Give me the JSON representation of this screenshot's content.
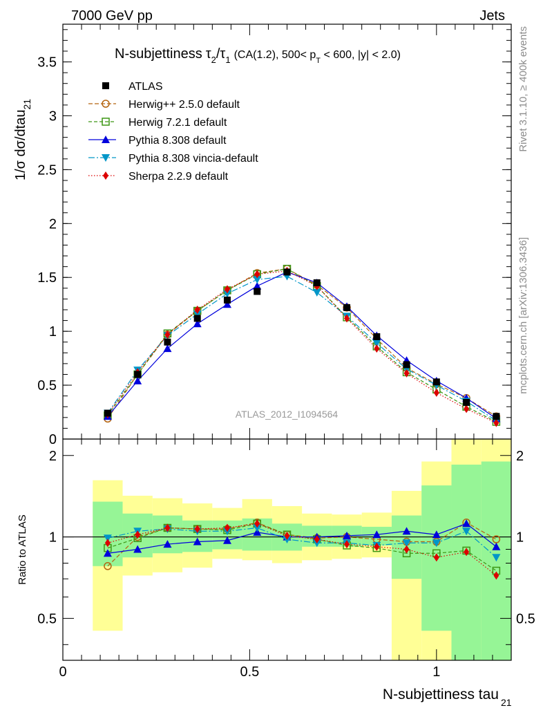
{
  "header": {
    "left_label": "7000 GeV pp",
    "right_label": "Jets"
  },
  "side_labels": {
    "rivet": "Rivet 3.1.10, ≥ 400k events",
    "source": "mcplots.cern.ch [arXiv:1306.3436]"
  },
  "watermark": "ATLAS_2012_I1094564",
  "chart_data": {
    "type": "line",
    "title": "N-subjettiness τ2/τ1 (CA(1.2), 500< pT < 600, |y| < 2.0)",
    "title_parts": {
      "lead": "N-subjettiness",
      "tau": "τ",
      "sub2": "2",
      "slash": "/",
      "sub1": "1",
      "cond1": "(CA(1.2), 500< p",
      "subT": "T",
      "cond2": " < 600, |y| < 2.0)"
    },
    "xlabel": "N-subjettiness tau",
    "xlabel_sub": "21",
    "ylabel": "1/σ dσ/dtau",
    "ylabel_sub": "21",
    "ratio_ylabel": "Ratio to ATLAS",
    "xlim": [
      0,
      1.2
    ],
    "ylim": [
      0,
      3.85
    ],
    "ratio_ylim": [
      0.35,
      2.3
    ],
    "x_ticks": [
      "0",
      "0.5",
      "1"
    ],
    "y_ticks": [
      "0",
      "0.5",
      "1",
      "1.5",
      "2",
      "2.5",
      "3",
      "3.5"
    ],
    "ratio_ticks": [
      "0.5",
      "1",
      "2"
    ],
    "x": [
      0.12,
      0.2,
      0.28,
      0.36,
      0.44,
      0.52,
      0.6,
      0.68,
      0.76,
      0.84,
      0.92,
      1.0,
      1.08,
      1.16
    ],
    "bin_edges": [
      0.08,
      0.16,
      0.24,
      0.32,
      0.4,
      0.48,
      0.56,
      0.64,
      0.72,
      0.8,
      0.88,
      0.96,
      1.04,
      1.12,
      1.2
    ],
    "data": {
      "name": "ATLAS",
      "values": [
        0.24,
        0.6,
        0.9,
        1.12,
        1.29,
        1.37,
        1.55,
        1.45,
        1.22,
        0.95,
        0.69,
        0.53,
        0.34,
        0.21
      ]
    },
    "bands": {
      "yellow": [
        [
          0.45,
          1.62
        ],
        [
          0.72,
          1.42
        ],
        [
          0.74,
          1.39
        ],
        [
          0.77,
          1.33
        ],
        [
          0.83,
          1.28
        ],
        [
          0.82,
          1.38
        ],
        [
          0.8,
          1.3
        ],
        [
          0.82,
          1.22
        ],
        [
          0.83,
          1.21
        ],
        [
          0.84,
          1.23
        ],
        [
          0.35,
          1.48
        ],
        [
          0.35,
          1.9
        ],
        [
          0.35,
          2.3
        ],
        [
          0.35,
          2.3
        ]
      ],
      "green": [
        [
          0.78,
          1.35
        ],
        [
          0.84,
          1.22
        ],
        [
          0.87,
          1.2
        ],
        [
          0.88,
          1.15
        ],
        [
          0.9,
          1.15
        ],
        [
          0.89,
          1.17
        ],
        [
          0.89,
          1.12
        ],
        [
          0.92,
          1.1
        ],
        [
          0.92,
          1.1
        ],
        [
          0.93,
          1.09
        ],
        [
          0.7,
          1.2
        ],
        [
          0.45,
          1.55
        ],
        [
          0.35,
          1.85
        ],
        [
          0.35,
          1.9
        ]
      ]
    },
    "series": [
      {
        "name": "Herwig++ 2.5.0 default",
        "color": "#b4640f",
        "marker": "circle-open",
        "dash": "6,3",
        "values": [
          0.19,
          0.6,
          0.97,
          1.19,
          1.38,
          1.54,
          1.58,
          1.43,
          1.22,
          0.93,
          0.66,
          0.51,
          0.38,
          0.21
        ]
      },
      {
        "name": "Herwig 7.2.1 default",
        "color": "#3c9614",
        "marker": "square-open",
        "dash": "5,3",
        "values": [
          0.22,
          0.6,
          0.98,
          1.19,
          1.38,
          1.53,
          1.58,
          1.42,
          1.13,
          0.86,
          0.62,
          0.46,
          0.3,
          0.16
        ]
      },
      {
        "name": "Pythia 8.308 default",
        "color": "#0000dc",
        "marker": "triangle-up",
        "dash": "",
        "values": [
          0.21,
          0.54,
          0.84,
          1.07,
          1.25,
          1.42,
          1.55,
          1.45,
          1.23,
          0.96,
          0.73,
          0.54,
          0.38,
          0.19
        ]
      },
      {
        "name": "Pythia 8.308 vincia-default",
        "color": "#0096c8",
        "marker": "triangle-down",
        "dash": "9,3,2,3",
        "values": [
          0.24,
          0.64,
          0.96,
          1.16,
          1.35,
          1.48,
          1.51,
          1.36,
          1.14,
          0.89,
          0.65,
          0.5,
          0.35,
          0.17
        ]
      },
      {
        "name": "Sherpa 2.2.9 default",
        "color": "#dc0000",
        "marker": "diamond",
        "dash": "1.5,2.5",
        "values": [
          0.23,
          0.62,
          0.97,
          1.2,
          1.39,
          1.53,
          1.56,
          1.42,
          1.12,
          0.84,
          0.61,
          0.43,
          0.28,
          0.15
        ]
      }
    ],
    "ratios": [
      [
        0.78,
        1.0,
        1.08,
        1.07,
        1.07,
        1.13,
        1.02,
        0.99,
        1.0,
        0.98,
        0.96,
        0.96,
        1.13,
        0.98
      ],
      [
        0.91,
        0.99,
        1.08,
        1.07,
        1.06,
        1.12,
        1.02,
        0.98,
        0.93,
        0.91,
        0.87,
        0.87,
        0.89,
        0.75
      ],
      [
        0.87,
        0.9,
        0.94,
        0.96,
        0.97,
        1.04,
        1.0,
        1.0,
        1.01,
        1.02,
        1.05,
        1.02,
        1.12,
        0.92
      ],
      [
        0.99,
        1.05,
        1.07,
        1.05,
        1.05,
        1.08,
        0.98,
        0.95,
        0.95,
        0.93,
        0.95,
        0.95,
        1.05,
        0.84
      ],
      [
        0.95,
        1.02,
        1.08,
        1.07,
        1.08,
        1.12,
        1.01,
        0.98,
        0.94,
        0.92,
        0.9,
        0.84,
        0.88,
        0.72
      ]
    ]
  }
}
